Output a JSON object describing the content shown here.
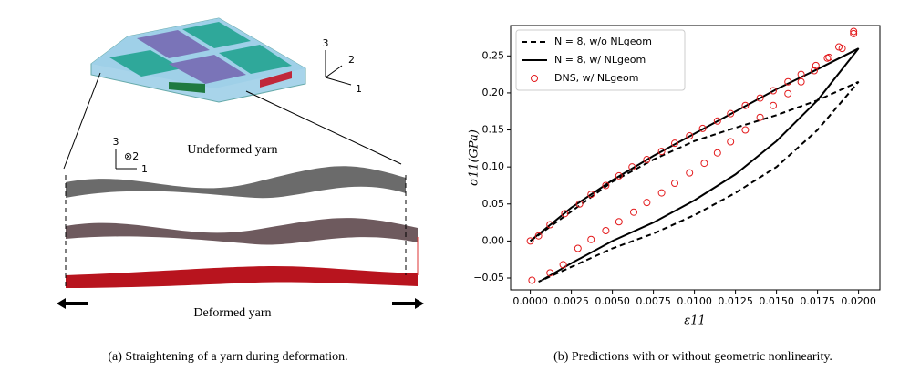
{
  "figure_a": {
    "caption": "(a) Straightening of a yarn during deformation.",
    "top_axes": [
      "3",
      "2",
      "1"
    ],
    "side_axes": [
      "3",
      "⊗2",
      "1"
    ],
    "undeformed_label": "Undeformed yarn",
    "deformed_label": "Deformed yarn"
  },
  "figure_b": {
    "caption": "(b) Predictions with or without geometric nonlinearity."
  },
  "chart_data": {
    "type": "line",
    "xlabel": "ε11",
    "ylabel": "σ11(GPa)",
    "xlim": [
      -0.0012,
      0.0213
    ],
    "ylim": [
      -0.066,
      0.291
    ],
    "xticks": [
      {
        "value": 0,
        "label": "0.0000"
      },
      0.0025,
      {
        "value": 0.005,
        "label": "0.0050"
      },
      0.0075,
      {
        "value": 0.01,
        "label": "0.0100"
      },
      0.0125,
      {
        "value": 0.015,
        "label": "0.0150"
      },
      0.0175,
      {
        "value": 0.02,
        "label": "0.0200"
      }
    ],
    "yticks": [
      {
        "value": -0.05,
        "label": "−0.05"
      },
      {
        "value": 0,
        "label": "0.00"
      },
      0.05,
      {
        "value": 0.1,
        "label": "0.10"
      },
      0.15,
      {
        "value": 0.2,
        "label": "0.20"
      },
      0.25
    ],
    "legend": "upper left",
    "series": [
      {
        "name": "N = 8, w/o NLgeom",
        "color": "#000000",
        "style": "dashed",
        "x": [
          0,
          0.0025,
          0.005,
          0.0075,
          0.01,
          0.0125,
          0.015,
          0.0175,
          0.02,
          0.0175,
          0.015,
          0.0125,
          0.01,
          0.0075,
          0.005,
          0.0025,
          0.0005
        ],
        "values": [
          0,
          0.04,
          0.08,
          0.11,
          0.135,
          0.153,
          0.17,
          0.19,
          0.215,
          0.15,
          0.1,
          0.065,
          0.035,
          0.01,
          -0.01,
          -0.035,
          -0.055
        ]
      },
      {
        "name": "N = 8, w/ NLgeom",
        "color": "#000000",
        "style": "solid",
        "x": [
          0,
          0.0025,
          0.005,
          0.0075,
          0.01,
          0.0125,
          0.015,
          0.0175,
          0.02,
          0.0175,
          0.015,
          0.0125,
          0.01,
          0.0075,
          0.005,
          0.0025,
          0.0007
        ],
        "values": [
          0,
          0.045,
          0.082,
          0.115,
          0.145,
          0.175,
          0.205,
          0.232,
          0.26,
          0.19,
          0.135,
          0.09,
          0.055,
          0.025,
          0,
          -0.03,
          -0.053
        ]
      },
      {
        "name": "DNS, w/ NLgeom",
        "color": "#e31a1c",
        "style": "circle",
        "x": [
          0,
          0.0005,
          0.0012,
          0.0021,
          0.003,
          0.0037,
          0.0046,
          0.0054,
          0.0062,
          0.0071,
          0.008,
          0.0088,
          0.0097,
          0.0105,
          0.0114,
          0.0122,
          0.0131,
          0.014,
          0.0148,
          0.0157,
          0.0165,
          0.0174,
          0.0182,
          0.019,
          0.0197,
          0.0197,
          0.0188,
          0.0181,
          0.0173,
          0.0165,
          0.0157,
          0.0148,
          0.014,
          0.0131,
          0.0122,
          0.0114,
          0.0106,
          0.0097,
          0.0088,
          0.008,
          0.0071,
          0.0063,
          0.0054,
          0.0046,
          0.0037,
          0.0029,
          0.002,
          0.0012,
          0.0001
        ],
        "values": [
          0,
          0.007,
          0.022,
          0.037,
          0.05,
          0.063,
          0.075,
          0.088,
          0.1,
          0.11,
          0.121,
          0.132,
          0.142,
          0.152,
          0.162,
          0.172,
          0.183,
          0.193,
          0.203,
          0.215,
          0.225,
          0.237,
          0.248,
          0.26,
          0.28,
          0.283,
          0.262,
          0.247,
          0.23,
          0.215,
          0.199,
          0.183,
          0.167,
          0.15,
          0.134,
          0.119,
          0.105,
          0.092,
          0.078,
          0.065,
          0.052,
          0.039,
          0.026,
          0.014,
          0.002,
          -0.01,
          -0.032,
          -0.043,
          -0.053
        ]
      }
    ]
  }
}
